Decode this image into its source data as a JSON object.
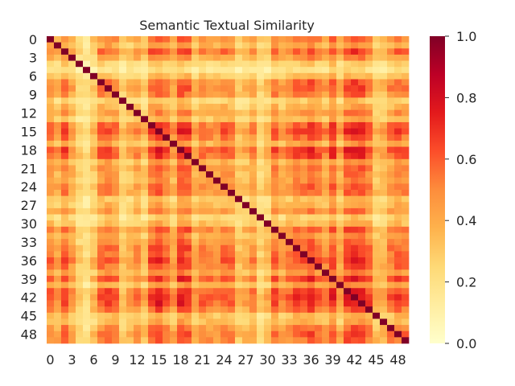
{
  "chart_data": {
    "type": "heatmap",
    "title": "Semantic Textual Similarity",
    "xlabel": "",
    "ylabel": "",
    "n": 50,
    "tick_labels": [
      "0",
      "3",
      "6",
      "9",
      "12",
      "15",
      "18",
      "21",
      "24",
      "27",
      "30",
      "33",
      "36",
      "39",
      "42",
      "45",
      "48"
    ],
    "tick_indices": [
      0,
      3,
      6,
      9,
      12,
      15,
      18,
      21,
      24,
      27,
      30,
      33,
      36,
      39,
      42,
      45,
      48
    ],
    "colorbar": {
      "range": [
        0.0,
        1.0
      ],
      "ticks": [
        "0.0",
        "0.2",
        "0.4",
        "0.6",
        "0.8",
        "1.0"
      ],
      "colormap": "YlOrRd"
    },
    "diagonal_value": 1.0,
    "item_strength": [
      0.55,
      0.45,
      0.62,
      0.48,
      0.3,
      0.22,
      0.35,
      0.58,
      0.6,
      0.55,
      0.32,
      0.4,
      0.5,
      0.38,
      0.64,
      0.7,
      0.6,
      0.45,
      0.7,
      0.66,
      0.45,
      0.55,
      0.52,
      0.5,
      0.58,
      0.56,
      0.35,
      0.4,
      0.5,
      0.3,
      0.38,
      0.6,
      0.48,
      0.55,
      0.62,
      0.6,
      0.68,
      0.6,
      0.5,
      0.68,
      0.45,
      0.68,
      0.72,
      0.7,
      0.6,
      0.38,
      0.4,
      0.55,
      0.62,
      0.58
    ],
    "note_values": "off-diagonal cell values approximated from item_strength products"
  }
}
